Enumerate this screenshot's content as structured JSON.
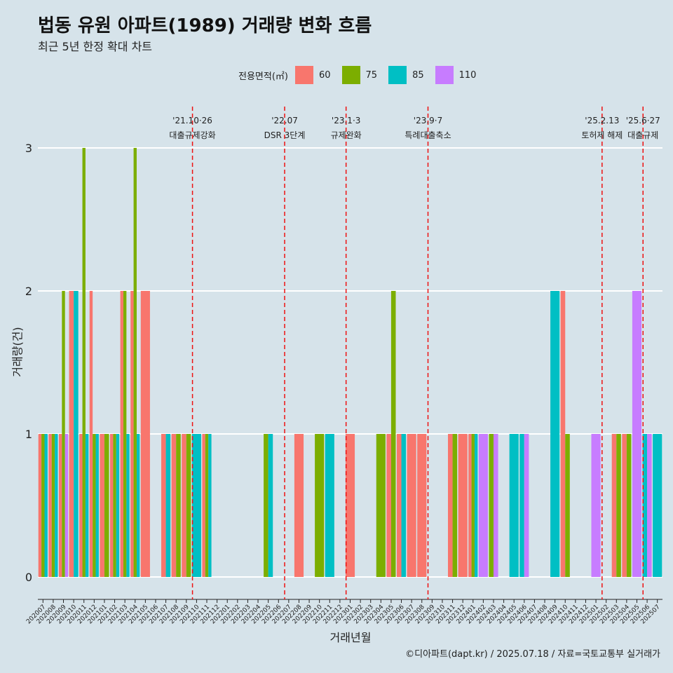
{
  "title": "법동 유원 아파트(1989) 거래량 변화 흐름",
  "subtitle": "최근 5년 한정 확대 차트",
  "caption": "©디아파트(dapt.kr) / 2025.07.18 / 자료=국토교통부 실거래가",
  "legend_title": "전용면적(㎡)",
  "colors": {
    "background": "#d6e3ea",
    "grid": "#ffffff",
    "event_line": "#ee1111"
  },
  "chart_data": {
    "type": "bar",
    "xlabel": "거래년월",
    "ylabel": "거래량(건)",
    "ylim": [
      0,
      3
    ],
    "yticks": [
      0,
      1,
      2,
      3
    ],
    "legend_position": "top",
    "categories": [
      "202007",
      "202008",
      "202009",
      "202010",
      "202011",
      "202012",
      "202101",
      "202102",
      "202103",
      "202104",
      "202105",
      "202106",
      "202107",
      "202108",
      "202109",
      "202110",
      "202111",
      "202112",
      "202201",
      "202202",
      "202203",
      "202204",
      "202205",
      "202206",
      "202207",
      "202208",
      "202209",
      "202210",
      "202211",
      "202212",
      "202301",
      "202302",
      "202303",
      "202304",
      "202305",
      "202306",
      "202307",
      "202308",
      "202309",
      "202310",
      "202311",
      "202312",
      "202401",
      "202402",
      "202403",
      "202404",
      "202405",
      "202406",
      "202407",
      "202408",
      "202409",
      "202410",
      "202411",
      "202412",
      "202501",
      "202502",
      "202503",
      "202504",
      "202505",
      "202506",
      "202507"
    ],
    "series": [
      {
        "name": "60",
        "color": "#f8766d",
        "values": [
          1,
          1,
          1,
          2,
          1,
          2,
          1,
          1,
          2,
          2,
          2,
          0,
          1,
          1,
          1,
          0,
          1,
          0,
          0,
          0,
          0,
          0,
          0,
          0,
          0,
          1,
          0,
          0,
          0,
          0,
          1,
          0,
          0,
          0,
          1,
          1,
          1,
          1,
          0,
          0,
          1,
          1,
          1,
          0,
          0,
          0,
          0,
          0,
          0,
          0,
          0,
          2,
          0,
          0,
          0,
          0,
          1,
          1,
          0,
          0,
          0
        ]
      },
      {
        "name": "75",
        "color": "#7cae00",
        "values": [
          1,
          1,
          2,
          0,
          3,
          1,
          1,
          1,
          2,
          3,
          0,
          0,
          0,
          1,
          1,
          0,
          1,
          0,
          0,
          0,
          0,
          0,
          1,
          0,
          0,
          0,
          0,
          1,
          0,
          0,
          0,
          0,
          0,
          1,
          2,
          0,
          0,
          0,
          0,
          0,
          1,
          0,
          1,
          0,
          1,
          0,
          0,
          0,
          0,
          0,
          0,
          1,
          0,
          0,
          0,
          0,
          1,
          1,
          0,
          0,
          0
        ]
      },
      {
        "name": "85",
        "color": "#00bfc4",
        "values": [
          1,
          1,
          0,
          2,
          1,
          1,
          0,
          1,
          1,
          1,
          0,
          0,
          1,
          0,
          0,
          1,
          1,
          0,
          0,
          0,
          0,
          0,
          1,
          0,
          0,
          0,
          0,
          0,
          1,
          0,
          0,
          0,
          0,
          0,
          0,
          1,
          0,
          0,
          0,
          0,
          0,
          0,
          1,
          0,
          0,
          0,
          1,
          1,
          0,
          0,
          2,
          0,
          0,
          0,
          0,
          0,
          0,
          0,
          0,
          1,
          1
        ]
      },
      {
        "name": "110",
        "color": "#c77cff",
        "values": [
          0,
          0,
          1,
          0,
          0,
          0,
          0,
          0,
          0,
          0,
          0,
          0,
          0,
          0,
          0,
          0,
          0,
          0,
          0,
          0,
          0,
          0,
          0,
          0,
          0,
          0,
          0,
          0,
          0,
          0,
          0,
          0,
          0,
          0,
          0,
          0,
          0,
          0,
          0,
          0,
          0,
          0,
          0,
          1,
          1,
          0,
          0,
          1,
          0,
          0,
          0,
          0,
          0,
          0,
          1,
          0,
          0,
          0,
          2,
          1,
          0
        ]
      }
    ],
    "annotations": [
      {
        "position": 15.1,
        "date": "'21.10·26",
        "label": "대출규제강화"
      },
      {
        "position": 24.1,
        "date": "'22.07",
        "label": "DSR 3단계"
      },
      {
        "position": 30.1,
        "date": "'23.1·3",
        "label": "규제완화"
      },
      {
        "position": 38.1,
        "date": "'23.9·7",
        "label": "특례대출축소"
      },
      {
        "position": 55.1,
        "date": "'25.2.13",
        "label": "토허제 해제"
      },
      {
        "position": 59.1,
        "date": "'25.6·27",
        "label": "대출규제"
      }
    ]
  }
}
